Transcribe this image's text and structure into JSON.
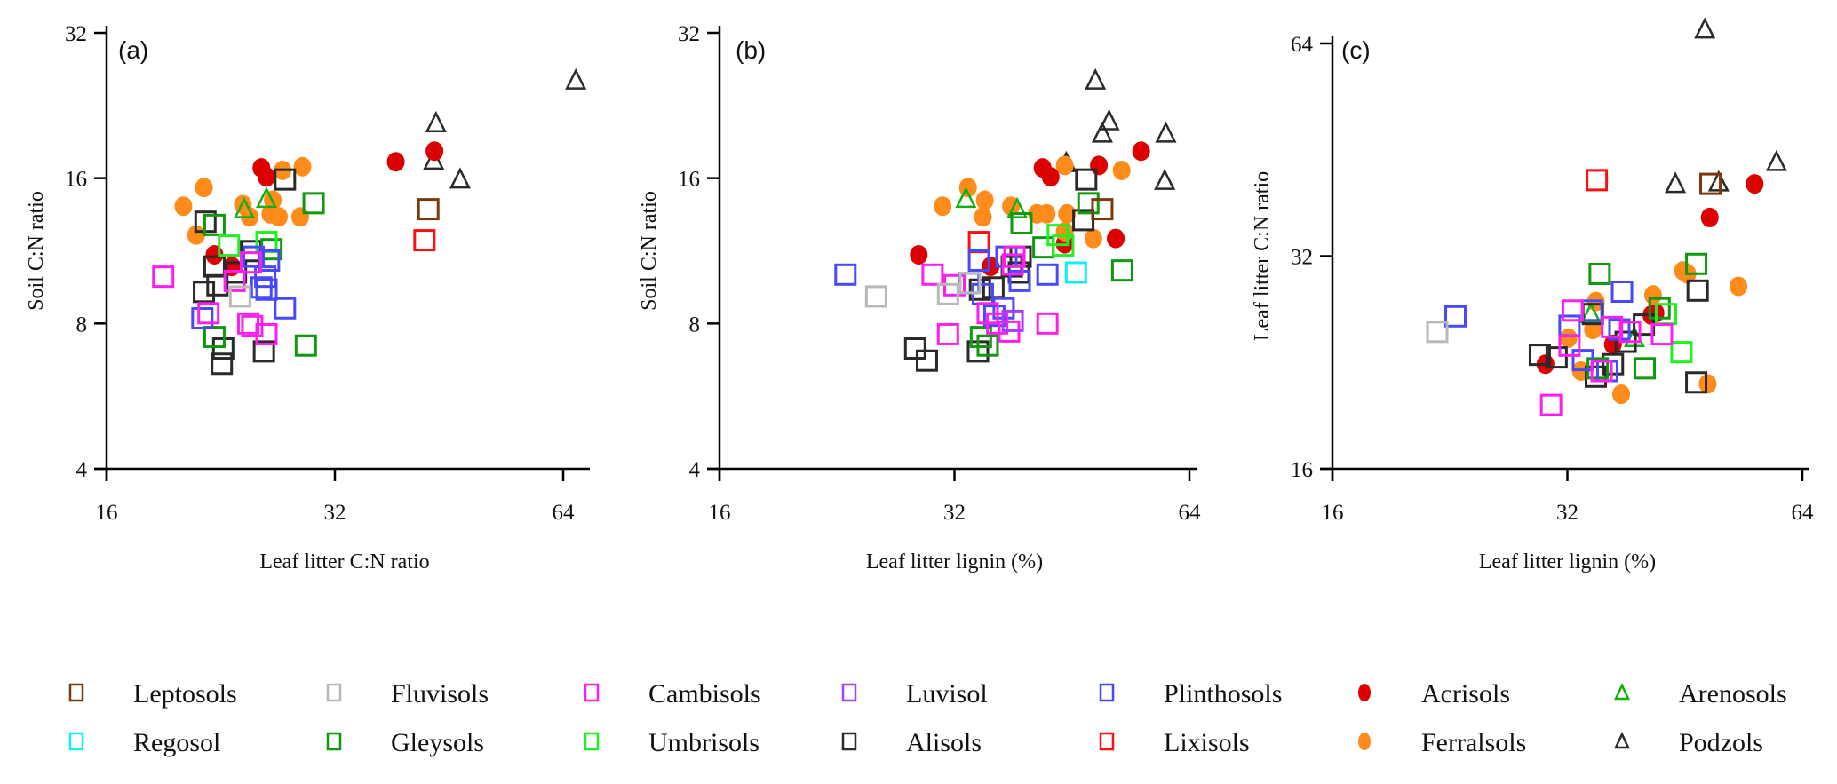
{
  "legend": [
    {
      "name": "Leptosols",
      "marker": "square",
      "color": "#7a3b0c"
    },
    {
      "name": "Fluvisols",
      "marker": "square",
      "color": "#b8b8b8"
    },
    {
      "name": "Cambisols",
      "marker": "square",
      "color": "#ff1ef0"
    },
    {
      "name": "Luvisol",
      "marker": "square",
      "color": "#a040ff"
    },
    {
      "name": "Plinthosols",
      "marker": "square",
      "color": "#4848ff"
    },
    {
      "name": "Acrisols",
      "marker": "circle",
      "color": "#dd0000"
    },
    {
      "name": "Arenosols",
      "marker": "triangle",
      "color": "#10b010"
    },
    {
      "name": "Regosol",
      "marker": "square",
      "color": "#10f0f0"
    },
    {
      "name": "Gleysols",
      "marker": "square",
      "color": "#109810"
    },
    {
      "name": "Umbrisols",
      "marker": "square",
      "color": "#20f020"
    },
    {
      "name": "Alisols",
      "marker": "square",
      "color": "#2a2a2a"
    },
    {
      "name": "Lixisols",
      "marker": "square",
      "color": "#ff1010"
    },
    {
      "name": "Ferralsols",
      "marker": "circle",
      "color": "#ff8c1a"
    },
    {
      "name": "Podzols",
      "marker": "triangle",
      "color": "#2a2a2a"
    }
  ],
  "chart_data": [
    {
      "type": "scatter",
      "panel_label": "(a)",
      "xlabel": "Leaf litter C:N ratio",
      "ylabel": "Soil C:N ratio",
      "xscale": "log2",
      "yscale": "log2",
      "xlim": [
        16,
        68
      ],
      "ylim": [
        4,
        32
      ],
      "xticks": [
        16,
        32,
        64
      ],
      "yticks": [
        4,
        8,
        16,
        32
      ],
      "points": [
        {
          "s": "Podzols",
          "x": 66.5,
          "y": 25.5
        },
        {
          "s": "Podzols",
          "x": 43.5,
          "y": 20.8
        },
        {
          "s": "Podzols",
          "x": 43.2,
          "y": 17.4
        },
        {
          "s": "Podzols",
          "x": 46.8,
          "y": 15.9
        },
        {
          "s": "Acrisols",
          "x": 43.3,
          "y": 18.2
        },
        {
          "s": "Acrisols",
          "x": 38.5,
          "y": 17.3
        },
        {
          "s": "Acrisols",
          "x": 25.6,
          "y": 16.8
        },
        {
          "s": "Acrisols",
          "x": 26.0,
          "y": 16.1
        },
        {
          "s": "Acrisols",
          "x": 22.2,
          "y": 11.1
        },
        {
          "s": "Acrisols",
          "x": 23.4,
          "y": 10.5
        },
        {
          "s": "Ferralsols",
          "x": 27.3,
          "y": 16.6
        },
        {
          "s": "Ferralsols",
          "x": 29.0,
          "y": 16.9
        },
        {
          "s": "Ferralsols",
          "x": 21.5,
          "y": 15.3
        },
        {
          "s": "Ferralsols",
          "x": 20.2,
          "y": 14.0
        },
        {
          "s": "Ferralsols",
          "x": 24.2,
          "y": 14.1
        },
        {
          "s": "Ferralsols",
          "x": 26.5,
          "y": 14.4
        },
        {
          "s": "Ferralsols",
          "x": 24.7,
          "y": 13.3
        },
        {
          "s": "Ferralsols",
          "x": 26.3,
          "y": 13.5
        },
        {
          "s": "Ferralsols",
          "x": 27.0,
          "y": 13.3
        },
        {
          "s": "Ferralsols",
          "x": 28.8,
          "y": 13.3
        },
        {
          "s": "Ferralsols",
          "x": 21.0,
          "y": 12.2
        },
        {
          "s": "Arenosols",
          "x": 26.0,
          "y": 14.5
        },
        {
          "s": "Arenosols",
          "x": 24.3,
          "y": 13.8
        },
        {
          "s": "Alisols",
          "x": 27.5,
          "y": 15.9
        },
        {
          "s": "Alisols",
          "x": 21.6,
          "y": 13.0
        },
        {
          "s": "Alisols",
          "x": 24.8,
          "y": 11.3
        },
        {
          "s": "Alisols",
          "x": 22.2,
          "y": 10.5
        },
        {
          "s": "Alisols",
          "x": 23.7,
          "y": 10.2
        },
        {
          "s": "Alisols",
          "x": 22.4,
          "y": 9.6
        },
        {
          "s": "Alisols",
          "x": 21.5,
          "y": 9.3
        },
        {
          "s": "Alisols",
          "x": 22.8,
          "y": 7.1
        },
        {
          "s": "Alisols",
          "x": 25.8,
          "y": 7.0
        },
        {
          "s": "Alisols",
          "x": 22.7,
          "y": 6.6
        },
        {
          "s": "Gleysols",
          "x": 30.0,
          "y": 14.2
        },
        {
          "s": "Gleysols",
          "x": 22.2,
          "y": 12.8
        },
        {
          "s": "Gleysols",
          "x": 26.4,
          "y": 11.4
        },
        {
          "s": "Gleysols",
          "x": 22.2,
          "y": 7.5
        },
        {
          "s": "Gleysols",
          "x": 29.3,
          "y": 7.2
        },
        {
          "s": "Umbrisols",
          "x": 26.0,
          "y": 11.8
        },
        {
          "s": "Umbrisols",
          "x": 23.2,
          "y": 11.6
        },
        {
          "s": "Plinthosols",
          "x": 25.0,
          "y": 11.0
        },
        {
          "s": "Plinthosols",
          "x": 26.2,
          "y": 10.8
        },
        {
          "s": "Plinthosols",
          "x": 25.9,
          "y": 10.0
        },
        {
          "s": "Plinthosols",
          "x": 25.6,
          "y": 9.5
        },
        {
          "s": "Plinthosols",
          "x": 26.0,
          "y": 9.4
        },
        {
          "s": "Plinthosols",
          "x": 27.5,
          "y": 8.6
        },
        {
          "s": "Plinthosols",
          "x": 21.4,
          "y": 8.2
        },
        {
          "s": "Cambisols",
          "x": 19.0,
          "y": 10.0
        },
        {
          "s": "Cambisols",
          "x": 24.8,
          "y": 10.7
        },
        {
          "s": "Cambisols",
          "x": 23.6,
          "y": 9.8
        },
        {
          "s": "Cambisols",
          "x": 21.8,
          "y": 8.4
        },
        {
          "s": "Cambisols",
          "x": 24.6,
          "y": 8.0
        },
        {
          "s": "Cambisols",
          "x": 24.9,
          "y": 7.9
        },
        {
          "s": "Cambisols",
          "x": 26.0,
          "y": 7.6
        },
        {
          "s": "Fluvisols",
          "x": 24.0,
          "y": 9.1
        },
        {
          "s": "Leptosols",
          "x": 42.5,
          "y": 13.8
        },
        {
          "s": "Lixisols",
          "x": 42.0,
          "y": 11.9
        }
      ]
    },
    {
      "type": "scatter",
      "panel_label": "(b)",
      "xlabel": "Leaf litter lignin (%)",
      "ylabel": "Soil C:N ratio",
      "xscale": "log2",
      "yscale": "log2",
      "xlim": [
        16,
        64
      ],
      "ylim": [
        4,
        32
      ],
      "xticks": [
        16,
        32,
        64
      ],
      "yticks": [
        4,
        8,
        16,
        32
      ],
      "points": [
        {
          "s": "Podzols",
          "x": 48.5,
          "y": 25.5
        },
        {
          "s": "Podzols",
          "x": 50.5,
          "y": 21.0
        },
        {
          "s": "Podzols",
          "x": 49.5,
          "y": 19.8
        },
        {
          "s": "Podzols",
          "x": 59.7,
          "y": 19.8
        },
        {
          "s": "Podzols",
          "x": 44.5,
          "y": 17.2
        },
        {
          "s": "Podzols",
          "x": 59.5,
          "y": 15.8
        },
        {
          "s": "Acrisols",
          "x": 55.5,
          "y": 18.2
        },
        {
          "s": "Acrisols",
          "x": 49.0,
          "y": 17.0
        },
        {
          "s": "Acrisols",
          "x": 41.5,
          "y": 16.8
        },
        {
          "s": "Acrisols",
          "x": 42.5,
          "y": 16.1
        },
        {
          "s": "Acrisols",
          "x": 51.5,
          "y": 12.0
        },
        {
          "s": "Acrisols",
          "x": 44.3,
          "y": 11.7
        },
        {
          "s": "Acrisols",
          "x": 28.8,
          "y": 11.1
        },
        {
          "s": "Acrisols",
          "x": 35.6,
          "y": 10.5
        },
        {
          "s": "Ferralsols",
          "x": 44.3,
          "y": 17.0
        },
        {
          "s": "Ferralsols",
          "x": 52.4,
          "y": 16.6
        },
        {
          "s": "Ferralsols",
          "x": 33.3,
          "y": 15.3
        },
        {
          "s": "Ferralsols",
          "x": 30.9,
          "y": 14.0
        },
        {
          "s": "Ferralsols",
          "x": 35.0,
          "y": 14.4
        },
        {
          "s": "Ferralsols",
          "x": 37.8,
          "y": 14.0
        },
        {
          "s": "Ferralsols",
          "x": 34.8,
          "y": 13.3
        },
        {
          "s": "Ferralsols",
          "x": 40.8,
          "y": 13.5
        },
        {
          "s": "Ferralsols",
          "x": 42.0,
          "y": 13.5
        },
        {
          "s": "Ferralsols",
          "x": 44.6,
          "y": 13.5
        },
        {
          "s": "Ferralsols",
          "x": 44.3,
          "y": 12.4
        },
        {
          "s": "Ferralsols",
          "x": 48.2,
          "y": 12.0
        },
        {
          "s": "Arenosols",
          "x": 33.1,
          "y": 14.5
        },
        {
          "s": "Arenosols",
          "x": 38.5,
          "y": 13.8
        },
        {
          "s": "Alisols",
          "x": 47.2,
          "y": 15.9
        },
        {
          "s": "Alisols",
          "x": 46.8,
          "y": 13.1
        },
        {
          "s": "Alisols",
          "x": 38.9,
          "y": 11.0
        },
        {
          "s": "Alisols",
          "x": 37.9,
          "y": 10.5
        },
        {
          "s": "Alisols",
          "x": 38.7,
          "y": 10.2
        },
        {
          "s": "Alisols",
          "x": 35.9,
          "y": 9.5
        },
        {
          "s": "Alisols",
          "x": 34.5,
          "y": 9.4
        },
        {
          "s": "Alisols",
          "x": 28.5,
          "y": 7.1
        },
        {
          "s": "Alisols",
          "x": 29.5,
          "y": 6.7
        },
        {
          "s": "Alisols",
          "x": 34.3,
          "y": 7.0
        },
        {
          "s": "Gleysols",
          "x": 47.5,
          "y": 14.2
        },
        {
          "s": "Gleysols",
          "x": 39.0,
          "y": 12.9
        },
        {
          "s": "Gleysols",
          "x": 41.6,
          "y": 11.5
        },
        {
          "s": "Gleysols",
          "x": 52.5,
          "y": 10.3
        },
        {
          "s": "Gleysols",
          "x": 34.6,
          "y": 7.5
        },
        {
          "s": "Gleysols",
          "x": 35.3,
          "y": 7.2
        },
        {
          "s": "Umbrisols",
          "x": 43.4,
          "y": 12.2
        },
        {
          "s": "Umbrisols",
          "x": 44.1,
          "y": 11.6
        },
        {
          "s": "Lixisols",
          "x": 34.4,
          "y": 11.8
        },
        {
          "s": "Leptosols",
          "x": 49.5,
          "y": 13.8
        },
        {
          "s": "Regosol",
          "x": 45.8,
          "y": 10.2
        },
        {
          "s": "Plinthosols",
          "x": 23.2,
          "y": 10.1
        },
        {
          "s": "Plinthosols",
          "x": 34.4,
          "y": 10.8
        },
        {
          "s": "Plinthosols",
          "x": 37.3,
          "y": 11.0
        },
        {
          "s": "Plinthosols",
          "x": 42.1,
          "y": 10.1
        },
        {
          "s": "Plinthosols",
          "x": 38.8,
          "y": 9.8
        },
        {
          "s": "Plinthosols",
          "x": 33.4,
          "y": 9.7
        },
        {
          "s": "Plinthosols",
          "x": 34.8,
          "y": 9.2
        },
        {
          "s": "Plinthosols",
          "x": 37.0,
          "y": 8.6
        },
        {
          "s": "Plinthosols",
          "x": 36.0,
          "y": 8.3
        },
        {
          "s": "Cambisols",
          "x": 30.0,
          "y": 10.1
        },
        {
          "s": "Cambisols",
          "x": 32.0,
          "y": 9.6
        },
        {
          "s": "Cambisols",
          "x": 38.2,
          "y": 11.0
        },
        {
          "s": "Cambisols",
          "x": 38.0,
          "y": 10.6
        },
        {
          "s": "Cambisols",
          "x": 35.3,
          "y": 8.4
        },
        {
          "s": "Cambisols",
          "x": 36.3,
          "y": 8.0
        },
        {
          "s": "Cambisols",
          "x": 37.6,
          "y": 7.7
        },
        {
          "s": "Cambisols",
          "x": 42.1,
          "y": 8.0
        },
        {
          "s": "Cambisols",
          "x": 31.4,
          "y": 7.6
        },
        {
          "s": "Luvisol",
          "x": 38.0,
          "y": 8.1
        },
        {
          "s": "Fluvisols",
          "x": 25.4,
          "y": 9.1
        },
        {
          "s": "Fluvisols",
          "x": 31.4,
          "y": 9.2
        },
        {
          "s": "Fluvisols",
          "x": 33.5,
          "y": 9.7
        }
      ]
    },
    {
      "type": "scatter",
      "panel_label": "(c)",
      "xlabel": "Leaf litter lignin (%)",
      "ylabel": "Leaf litter C:N ratio",
      "xscale": "log2",
      "yscale": "log2",
      "xlim": [
        16,
        64
      ],
      "ylim": [
        16,
        68
      ],
      "xticks": [
        16,
        32,
        64
      ],
      "yticks": [
        16,
        32,
        64
      ],
      "points": [
        {
          "s": "Podzols",
          "x": 48.0,
          "y": 67.0
        },
        {
          "s": "Podzols",
          "x": 59.3,
          "y": 43.5
        },
        {
          "s": "Podzols",
          "x": 44.0,
          "y": 40.5
        },
        {
          "s": "Podzols",
          "x": 50.0,
          "y": 40.7
        },
        {
          "s": "Acrisols",
          "x": 55.6,
          "y": 40.5
        },
        {
          "s": "Acrisols",
          "x": 48.7,
          "y": 36.3
        },
        {
          "s": "Acrisols",
          "x": 41.0,
          "y": 26.4
        },
        {
          "s": "Acrisols",
          "x": 41.5,
          "y": 26.6
        },
        {
          "s": "Acrisols",
          "x": 36.6,
          "y": 24.0
        },
        {
          "s": "Acrisols",
          "x": 30.0,
          "y": 22.5
        },
        {
          "s": "Ferralsols",
          "x": 45.0,
          "y": 30.5
        },
        {
          "s": "Ferralsols",
          "x": 45.6,
          "y": 30.2
        },
        {
          "s": "Ferralsols",
          "x": 53.0,
          "y": 29.0
        },
        {
          "s": "Ferralsols",
          "x": 41.2,
          "y": 28.2
        },
        {
          "s": "Ferralsols",
          "x": 34.8,
          "y": 27.6
        },
        {
          "s": "Ferralsols",
          "x": 34.5,
          "y": 25.2
        },
        {
          "s": "Ferralsols",
          "x": 32.1,
          "y": 24.5
        },
        {
          "s": "Ferralsols",
          "x": 33.3,
          "y": 22.0
        },
        {
          "s": "Ferralsols",
          "x": 48.4,
          "y": 21.1
        },
        {
          "s": "Ferralsols",
          "x": 37.5,
          "y": 20.4
        },
        {
          "s": "Arenosols",
          "x": 34.3,
          "y": 26.5
        },
        {
          "s": "Arenosols",
          "x": 39.0,
          "y": 24.5
        },
        {
          "s": "Alisols",
          "x": 47.0,
          "y": 28.6
        },
        {
          "s": "Alisols",
          "x": 34.5,
          "y": 26.5
        },
        {
          "s": "Alisols",
          "x": 40.1,
          "y": 25.6
        },
        {
          "s": "Alisols",
          "x": 38.0,
          "y": 24.2
        },
        {
          "s": "Alisols",
          "x": 29.5,
          "y": 23.2
        },
        {
          "s": "Alisols",
          "x": 31.0,
          "y": 23.0
        },
        {
          "s": "Alisols",
          "x": 36.6,
          "y": 22.5
        },
        {
          "s": "Alisols",
          "x": 34.8,
          "y": 21.6
        },
        {
          "s": "Alisols",
          "x": 46.8,
          "y": 21.2
        },
        {
          "s": "Gleysols",
          "x": 46.8,
          "y": 31.2
        },
        {
          "s": "Gleysols",
          "x": 35.2,
          "y": 30.2
        },
        {
          "s": "Gleysols",
          "x": 42.0,
          "y": 27.0
        },
        {
          "s": "Gleysols",
          "x": 35.0,
          "y": 22.2
        },
        {
          "s": "Gleysols",
          "x": 40.2,
          "y": 22.2
        },
        {
          "s": "Umbrisols",
          "x": 42.8,
          "y": 26.5
        },
        {
          "s": "Umbrisols",
          "x": 44.8,
          "y": 23.4
        },
        {
          "s": "Lixisols",
          "x": 34.9,
          "y": 41.0
        },
        {
          "s": "Leptosols",
          "x": 48.8,
          "y": 40.5
        },
        {
          "s": "Plinthosols",
          "x": 23.0,
          "y": 26.3
        },
        {
          "s": "Plinthosols",
          "x": 32.2,
          "y": 25.5
        },
        {
          "s": "Plinthosols",
          "x": 34.4,
          "y": 26.8
        },
        {
          "s": "Plinthosols",
          "x": 37.6,
          "y": 28.5
        },
        {
          "s": "Plinthosols",
          "x": 37.3,
          "y": 25.2
        },
        {
          "s": "Plinthosols",
          "x": 33.5,
          "y": 22.8
        },
        {
          "s": "Plinthosols",
          "x": 36.0,
          "y": 22.0
        },
        {
          "s": "Cambisols",
          "x": 32.5,
          "y": 26.8
        },
        {
          "s": "Cambisols",
          "x": 36.5,
          "y": 25.4
        },
        {
          "s": "Cambisols",
          "x": 38.5,
          "y": 25.0
        },
        {
          "s": "Cambisols",
          "x": 42.3,
          "y": 24.8
        },
        {
          "s": "Cambisols",
          "x": 32.2,
          "y": 23.9
        },
        {
          "s": "Cambisols",
          "x": 35.4,
          "y": 22.0
        },
        {
          "s": "Cambisols",
          "x": 30.5,
          "y": 19.7
        },
        {
          "s": "Fluvisols",
          "x": 21.8,
          "y": 25.0
        }
      ]
    }
  ]
}
